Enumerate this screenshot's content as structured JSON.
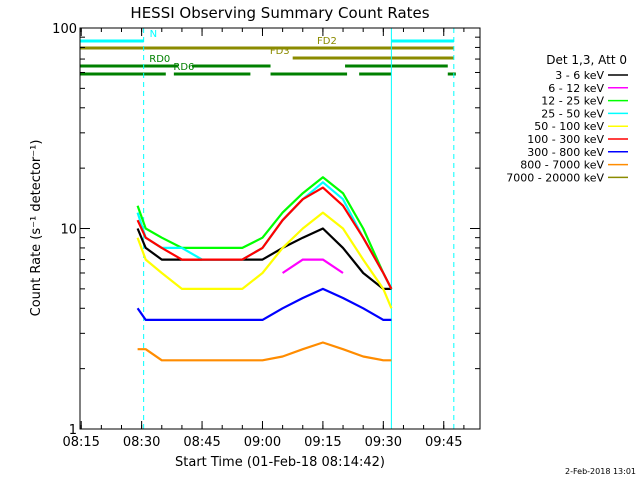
{
  "chart_data": {
    "type": "line",
    "title": "HESSI Observing Summary Count Rates",
    "xlabel": "Start Time (01-Feb-18 08:14:42)",
    "ylabel": "Count Rate (s⁻¹ detector⁻¹)",
    "yscale": "log",
    "ylim": [
      1,
      100
    ],
    "xlim": [
      "08:14:42",
      "09:54:00"
    ],
    "x_ticks": [
      "08:15",
      "08:30",
      "08:45",
      "09:00",
      "09:15",
      "09:30",
      "09:45"
    ],
    "y_ticks": [
      {
        "value": 1,
        "label": "1"
      },
      {
        "value": 10,
        "label": "10"
      },
      {
        "value": 100,
        "label": "100"
      }
    ],
    "y_minor_ticks": [
      2,
      3,
      4,
      5,
      6,
      7,
      8,
      9,
      20,
      30,
      40,
      50,
      60,
      70,
      80,
      90
    ],
    "legend_header": "Det 1,3, Att 0",
    "legend_position": "right",
    "grid": false,
    "series": [
      {
        "name": "3 - 6 keV",
        "color": "#000000",
        "x": [
          "08:29",
          "08:31",
          "08:35",
          "08:40",
          "08:45",
          "08:50",
          "08:55",
          "09:00",
          "09:05",
          "09:10",
          "09:15",
          "09:20",
          "09:25",
          "09:30",
          "09:32"
        ],
        "y": [
          10,
          8,
          7,
          7,
          7,
          7,
          7,
          7,
          8,
          9,
          10,
          8,
          6,
          5,
          5
        ]
      },
      {
        "name": "6 - 12 keV",
        "color": "#ff00ff",
        "x": [
          "09:05",
          "09:10",
          "09:15",
          "09:20"
        ],
        "y": [
          6,
          7,
          7,
          6
        ]
      },
      {
        "name": "12 - 25 keV",
        "color": "#00ff00",
        "x": [
          "08:29",
          "08:31",
          "08:35",
          "08:40",
          "08:45",
          "08:50",
          "08:55",
          "09:00",
          "09:05",
          "09:10",
          "09:15",
          "09:20",
          "09:25",
          "09:30",
          "09:32"
        ],
        "y": [
          13,
          10,
          9,
          8,
          8,
          8,
          8,
          9,
          12,
          15,
          18,
          15,
          10,
          6,
          5
        ]
      },
      {
        "name": "25 - 50 keV",
        "color": "#00ffff",
        "x": [
          "08:29",
          "08:31",
          "08:35",
          "08:40",
          "08:45",
          "08:50",
          "08:55",
          "09:00",
          "09:05",
          "09:10",
          "09:15",
          "09:20",
          "09:25",
          "09:30",
          "09:32"
        ],
        "y": [
          12,
          9,
          8,
          8,
          7,
          7,
          7,
          8,
          11,
          14,
          17,
          14,
          9,
          6,
          5
        ]
      },
      {
        "name": "50 - 100 keV",
        "color": "#ffff00",
        "x": [
          "08:29",
          "08:31",
          "08:35",
          "08:40",
          "08:45",
          "08:50",
          "08:55",
          "09:00",
          "09:05",
          "09:10",
          "09:15",
          "09:20",
          "09:25",
          "09:30",
          "09:32"
        ],
        "y": [
          9,
          7,
          6,
          5,
          5,
          5,
          5,
          6,
          8,
          10,
          12,
          10,
          7,
          5,
          4
        ]
      },
      {
        "name": "100 - 300 keV",
        "color": "#ff0000",
        "x": [
          "08:29",
          "08:31",
          "08:35",
          "08:40",
          "08:45",
          "08:50",
          "08:55",
          "09:00",
          "09:05",
          "09:10",
          "09:15",
          "09:20",
          "09:25",
          "09:30",
          "09:32"
        ],
        "y": [
          11,
          9,
          8,
          7,
          7,
          7,
          7,
          8,
          11,
          14,
          16,
          13,
          9,
          6,
          5
        ]
      },
      {
        "name": "300 - 800 keV",
        "color": "#0000ff",
        "x": [
          "08:29",
          "08:31",
          "08:35",
          "08:40",
          "08:45",
          "08:50",
          "08:55",
          "09:00",
          "09:05",
          "09:10",
          "09:15",
          "09:20",
          "09:25",
          "09:30",
          "09:32"
        ],
        "y": [
          4,
          3.5,
          3.5,
          3.5,
          3.5,
          3.5,
          3.5,
          3.5,
          4,
          4.5,
          5,
          4.5,
          4,
          3.5,
          3.5
        ]
      },
      {
        "name": "800 - 7000 keV",
        "color": "#ff8c00",
        "x": [
          "08:29",
          "08:31",
          "08:35",
          "08:40",
          "08:45",
          "08:50",
          "08:55",
          "09:00",
          "09:05",
          "09:10",
          "09:15",
          "09:20",
          "09:25",
          "09:30",
          "09:32"
        ],
        "y": [
          2.5,
          2.5,
          2.2,
          2.2,
          2.2,
          2.2,
          2.2,
          2.2,
          2.3,
          2.5,
          2.7,
          2.5,
          2.3,
          2.2,
          2.2
        ]
      },
      {
        "name": "7000 - 20000 keV",
        "color": "#8b8b00",
        "x": [],
        "y": []
      }
    ],
    "flag_bars": [
      {
        "label": "N",
        "color": "#00ffff",
        "segments": [
          [
            "08:14:42",
            "08:30:30"
          ],
          [
            "09:32:00",
            "09:47:30"
          ]
        ]
      },
      {
        "label": "FD2",
        "color": "#8b8b00",
        "segments": [
          [
            "08:14:42",
            "09:47:30"
          ]
        ]
      },
      {
        "label": "FD3",
        "color": "#8b8b00",
        "segments": [
          [
            "09:07:30",
            "09:47:30"
          ]
        ]
      },
      {
        "label": "RD0",
        "color": "#008000",
        "segments": [
          [
            "08:14:42",
            "08:39:00"
          ],
          [
            "08:42:30",
            "09:02:00"
          ],
          [
            "09:20:30",
            "09:46:00"
          ]
        ]
      },
      {
        "label": "RD6",
        "color": "#008000",
        "segments": [
          [
            "08:14:42",
            "08:36:00"
          ],
          [
            "08:38:00",
            "08:57:00"
          ],
          [
            "09:02:00",
            "09:21:00"
          ],
          [
            "09:24:00",
            "09:32:00"
          ],
          [
            "09:46:00",
            "09:48:00"
          ]
        ]
      }
    ],
    "vertical_lines": [
      {
        "color": "#00ffff",
        "style": "solid",
        "x": "08:14:42"
      },
      {
        "color": "#00ffff",
        "style": "dashed",
        "x": "08:30:30"
      },
      {
        "color": "#00ffff",
        "style": "solid",
        "x": "09:32:00"
      },
      {
        "color": "#00ffff",
        "style": "dashed",
        "x": "09:47:30"
      }
    ]
  },
  "footer": {
    "timestamp": "2-Feb-2018 13:01"
  }
}
